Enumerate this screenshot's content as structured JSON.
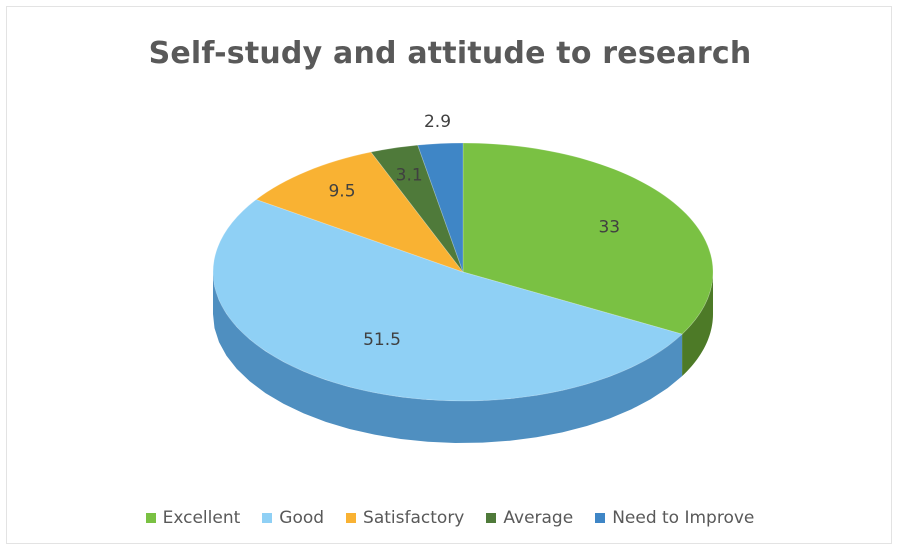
{
  "chart_data": {
    "type": "pie",
    "title": "Self-study and attitude to research",
    "categories": [
      "Excellent",
      "Good",
      "Satisfactory",
      "Average",
      "Need to Improve"
    ],
    "values": [
      33,
      51.5,
      9.5,
      3.1,
      2.9
    ],
    "data_labels": [
      "33",
      "51.5",
      "9.5",
      "3.1",
      "2.9"
    ],
    "colors": [
      "#7ac143",
      "#8fd0f5",
      "#f9b233",
      "#4f7a3a",
      "#3f86c6"
    ],
    "side_colors": [
      "#4d7a27",
      "#4f8fc0",
      "#c98a1e",
      "#2f4a22",
      "#2d5f8f"
    ],
    "legend_position": "bottom",
    "style": "3d"
  }
}
